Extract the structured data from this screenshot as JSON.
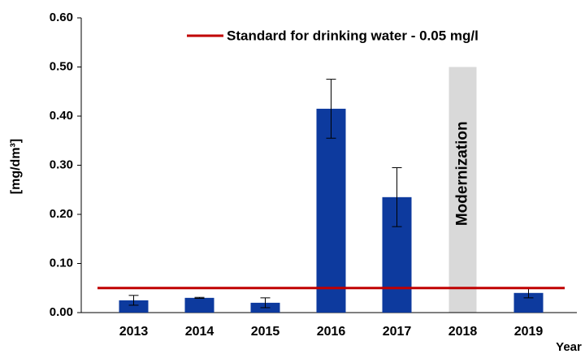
{
  "chart_data": {
    "type": "bar",
    "categories": [
      "2013",
      "2014",
      "2015",
      "2016",
      "2017",
      "2018",
      "2019"
    ],
    "values": [
      0.025,
      0.03,
      0.02,
      0.415,
      0.235,
      null,
      0.04
    ],
    "errors": [
      0.01,
      0.001,
      0.01,
      0.06,
      0.06,
      null,
      0.01
    ],
    "color": "#0d3a9e",
    "ylim": [
      0,
      0.6
    ],
    "yticks": [
      {
        "value": 0,
        "label": "0.00"
      },
      {
        "value": 0.1,
        "label": "0.10"
      },
      {
        "value": 0.2,
        "label": "0.20"
      },
      {
        "value": 0.3,
        "label": "0.30"
      },
      {
        "value": 0.4,
        "label": "0.40"
      },
      {
        "value": 0.5,
        "label": "0.50"
      },
      {
        "value": 0.6,
        "label": "0.60"
      }
    ],
    "y_label": "[mg/dm³]",
    "x_label": "Year",
    "reference_line": {
      "value": 0.05,
      "label": "Standard for drinking water - 0.05 mg/l",
      "color": "#c00000"
    },
    "shaded_region": {
      "category": "2018",
      "label": "Modernization",
      "ylim": [
        0,
        0.5
      ],
      "color": "#d9d9d9"
    }
  }
}
